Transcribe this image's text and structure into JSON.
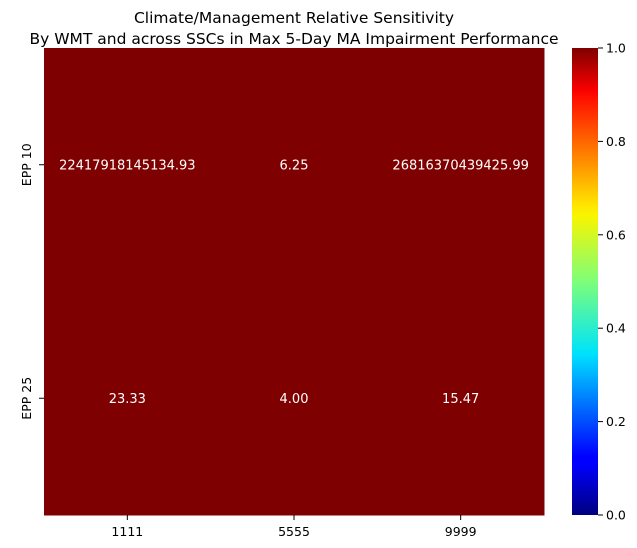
{
  "chart_data": {
    "type": "heatmap",
    "title": "Climate/Management Relative Sensitivity\nBy WMT and across SSCs in Max 5-Day MA Impairment Performance",
    "xlabel": "",
    "ylabel": "",
    "x_categories": [
      "1111",
      "5555",
      "9999"
    ],
    "y_categories": [
      "EPP 10",
      "EPP 25"
    ],
    "values": [
      [
        22417918145134.93,
        6.25,
        26816370439425.99
      ],
      [
        23.33,
        4.0,
        15.47
      ]
    ],
    "cell_labels": [
      [
        "22417918145134.93",
        "6.25",
        "26816370439425.99"
      ],
      [
        "23.33",
        "4.00",
        "15.47"
      ]
    ],
    "colormap": "jet",
    "color_range": [
      0.0,
      1.0
    ],
    "colorbar_ticks": [
      "0.0",
      "0.2",
      "0.4",
      "0.6",
      "0.8",
      "1.0"
    ],
    "cell_color": "#7f0000",
    "annotation_color": "#ffffff"
  }
}
